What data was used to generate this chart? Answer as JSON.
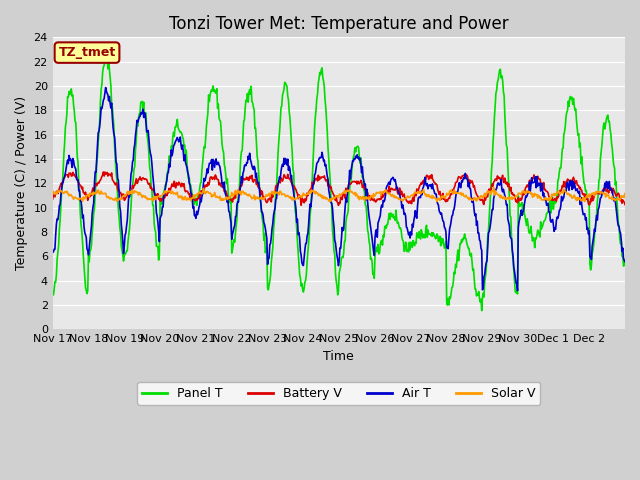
{
  "title": "Tonzi Tower Met: Temperature and Power",
  "xlabel": "Time",
  "ylabel": "Temperature (C) / Power (V)",
  "ylim": [
    0,
    24
  ],
  "yticks": [
    0,
    2,
    4,
    6,
    8,
    10,
    12,
    14,
    16,
    18,
    20,
    22,
    24
  ],
  "xtick_labels": [
    "Nov 17",
    "Nov 18",
    "Nov 19",
    "Nov 20",
    "Nov 21",
    "Nov 22",
    "Nov 23",
    "Nov 24",
    "Nov 25",
    "Nov 26",
    "Nov 27",
    "Nov 28",
    "Nov 29",
    "Nov 30",
    "Dec 1",
    "Dec 2"
  ],
  "colors": {
    "panel_t": "#00dd00",
    "battery_v": "#dd0000",
    "air_t": "#0000cc",
    "solar_v": "#ff9900"
  },
  "fig_bg": "#d0d0d0",
  "plot_bg": "#e8e8e8",
  "legend_labels": [
    "Panel T",
    "Battery V",
    "Air T",
    "Solar V"
  ],
  "timezone_label": "TZ_tmet",
  "tz_bg": "#ffff99",
  "tz_border": "#990000"
}
